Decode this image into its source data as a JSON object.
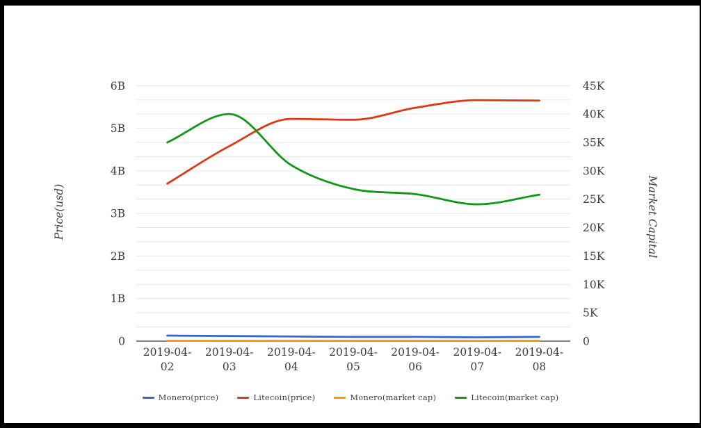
{
  "chart_data": {
    "type": "line",
    "title": "",
    "smooth": true,
    "legend_position": "bottom",
    "text_color": "#3c3c3c",
    "background_color": "#ffffff",
    "frame_color": "#000000",
    "categories": [
      "2019-04-02",
      "2019-04-03",
      "2019-04-04",
      "2019-04-05",
      "2019-04-06",
      "2019-04-07",
      "2019-04-08"
    ],
    "left_axis": {
      "title": "Price(usd)",
      "min": 0,
      "max": 6,
      "unit_suffix": "B",
      "ticks": [
        "0",
        "1B",
        "2B",
        "3B",
        "4B",
        "5B",
        "6B"
      ]
    },
    "right_axis": {
      "title": "Market Capital",
      "min": 0,
      "max": 45,
      "unit_suffix": "K",
      "ticks": [
        "0",
        "5K",
        "10K",
        "15K",
        "20K",
        "25K",
        "30K",
        "35K",
        "40K",
        "45K"
      ]
    },
    "grid": {
      "horizontal_divisions": 18,
      "line_color": "#e6e6e6",
      "axis_line_color": "#333333"
    },
    "series": [
      {
        "name": "Monero(price)",
        "axis": "left",
        "color": "#3366cc",
        "values": [
          0.13,
          0.12,
          0.11,
          0.1,
          0.1,
          0.09,
          0.1
        ]
      },
      {
        "name": "Litecoin(price)",
        "axis": "left",
        "color": "#dc3912",
        "values": [
          3.7,
          4.58,
          5.22,
          5.2,
          5.48,
          5.66,
          5.65
        ]
      },
      {
        "name": "Monero(market cap)",
        "axis": "right",
        "color": "#ff9900",
        "values": [
          0.08,
          0.07,
          0.06,
          0.06,
          0.06,
          0.06,
          0.07
        ]
      },
      {
        "name": "Litecoin(market cap)",
        "axis": "right",
        "color": "#109618",
        "values": [
          35.0,
          40.0,
          31.0,
          26.8,
          25.9,
          24.1,
          25.8
        ]
      }
    ]
  }
}
